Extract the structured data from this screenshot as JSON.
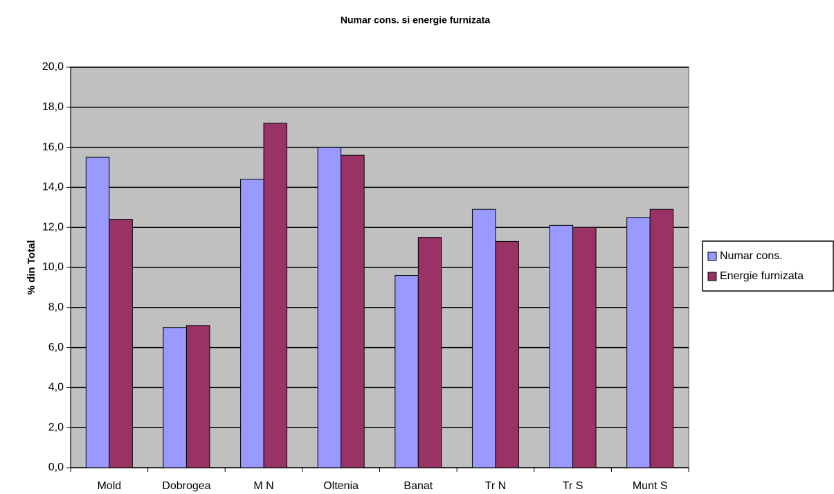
{
  "chart_data": {
    "type": "bar",
    "title": "Numar cons. si energie furnizata",
    "y_label": "% din Total",
    "categories": [
      "Mold",
      "Dobrogea",
      "M N",
      "Oltenia",
      "Banat",
      "Tr N",
      "Tr S",
      "Munt S"
    ],
    "series": [
      {
        "name": "Numar cons.",
        "color": "#9999ff",
        "values": [
          15.5,
          7.0,
          14.4,
          16.0,
          9.6,
          12.9,
          12.1,
          12.5
        ]
      },
      {
        "name": "Energie furnizata",
        "color": "#993366",
        "values": [
          12.4,
          7.1,
          17.2,
          15.6,
          11.5,
          11.3,
          12.0,
          12.9
        ]
      }
    ],
    "ylim": [
      0,
      20
    ],
    "yticks": [
      {
        "value": 0,
        "label": "0,0"
      },
      {
        "value": 2,
        "label": "2,0"
      },
      {
        "value": 4,
        "label": "4,0"
      },
      {
        "value": 6,
        "label": "6,0"
      },
      {
        "value": 8,
        "label": "8,0"
      },
      {
        "value": 10,
        "label": "10,0"
      },
      {
        "value": 12,
        "label": "12,0"
      },
      {
        "value": 14,
        "label": "14,0"
      },
      {
        "value": 16,
        "label": "16,0"
      },
      {
        "value": 18,
        "label": "18,0"
      },
      {
        "value": 20,
        "label": "20,0"
      }
    ],
    "grid": true,
    "legend": "right",
    "plot_background": "#c0c0c0"
  }
}
